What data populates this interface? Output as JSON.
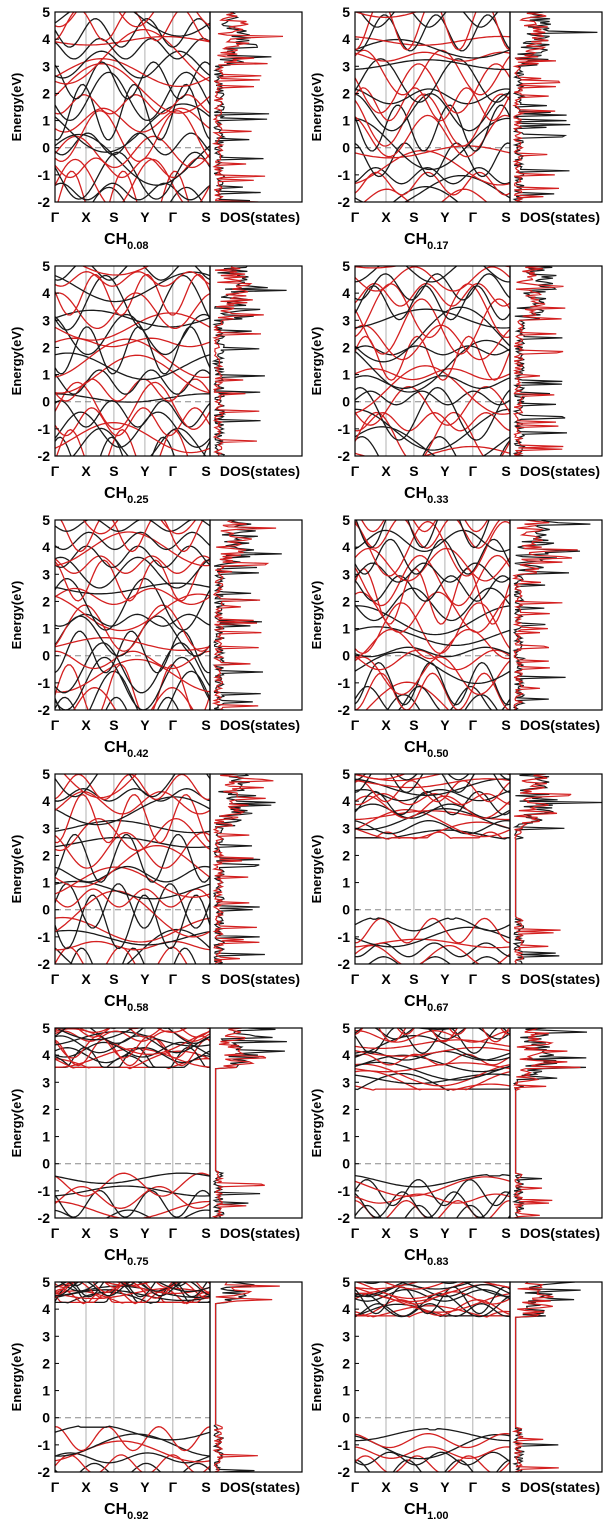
{
  "figure": {
    "y_axis_label": "Energy(eV)",
    "dos_label": "DOS(states)",
    "k_labels": [
      "Γ",
      "X",
      "S",
      "Y",
      "Γ",
      "S"
    ],
    "y_ticks": [
      "5",
      "4",
      "3",
      "2",
      "1",
      "0",
      "-1",
      "-2"
    ]
  },
  "colors": {
    "spin_up": "#1a1a1a",
    "spin_down": "#d42020",
    "fermi": "#888888",
    "kpath_line": "#b0b0b0"
  },
  "chart_data": [
    {
      "type": "line",
      "panel": "band structure + DOS",
      "title_base": "CH",
      "title_sub": "0.08",
      "ylim": [
        -2,
        5
      ],
      "fermi_level": 0,
      "k_path": [
        "Γ",
        "X",
        "S",
        "Y",
        "Γ",
        "S"
      ],
      "gap_region": null,
      "series": [
        {
          "name": "",
          "color": "black"
        },
        {
          "name": "",
          "color": "red"
        }
      ]
    },
    {
      "type": "line",
      "panel": "band structure + DOS",
      "title_base": "CH",
      "title_sub": "0.17",
      "ylim": [
        -2,
        5
      ],
      "fermi_level": 0,
      "k_path": [
        "Γ",
        "X",
        "S",
        "Y",
        "Γ",
        "S"
      ],
      "gap_region": null,
      "series": [
        {
          "name": "",
          "color": "black"
        },
        {
          "name": "",
          "color": "red"
        }
      ]
    },
    {
      "type": "line",
      "panel": "band structure + DOS",
      "title_base": "CH",
      "title_sub": "0.25",
      "ylim": [
        -2,
        5
      ],
      "fermi_level": 0,
      "k_path": [
        "Γ",
        "X",
        "S",
        "Y",
        "Γ",
        "S"
      ],
      "gap_region": null,
      "series": [
        {
          "name": "",
          "color": "black"
        },
        {
          "name": "",
          "color": "red"
        }
      ]
    },
    {
      "type": "line",
      "panel": "band structure + DOS",
      "title_base": "CH",
      "title_sub": "0.33",
      "ylim": [
        -2,
        5
      ],
      "fermi_level": 0,
      "k_path": [
        "Γ",
        "X",
        "S",
        "Y",
        "Γ",
        "S"
      ],
      "gap_region": null,
      "series": [
        {
          "name": "",
          "color": "black"
        },
        {
          "name": "",
          "color": "red"
        }
      ]
    },
    {
      "type": "line",
      "panel": "band structure + DOS",
      "title_base": "CH",
      "title_sub": "0.42",
      "ylim": [
        -2,
        5
      ],
      "fermi_level": 0,
      "k_path": [
        "Γ",
        "X",
        "S",
        "Y",
        "Γ",
        "S"
      ],
      "gap_region": null,
      "series": [
        {
          "name": "",
          "color": "black"
        },
        {
          "name": "",
          "color": "red"
        }
      ]
    },
    {
      "type": "line",
      "panel": "band structure + DOS",
      "title_base": "CH",
      "title_sub": "0.50",
      "ylim": [
        -2,
        5
      ],
      "fermi_level": 0,
      "k_path": [
        "Γ",
        "X",
        "S",
        "Y",
        "Γ",
        "S"
      ],
      "gap_region": null,
      "series": [
        {
          "name": "",
          "color": "black"
        },
        {
          "name": "",
          "color": "red"
        }
      ]
    },
    {
      "type": "line",
      "panel": "band structure + DOS",
      "title_base": "CH",
      "title_sub": "0.58",
      "ylim": [
        -2,
        5
      ],
      "fermi_level": 0,
      "k_path": [
        "Γ",
        "X",
        "S",
        "Y",
        "Γ",
        "S"
      ],
      "gap_region": null,
      "series": [
        {
          "name": "",
          "color": "black"
        },
        {
          "name": "",
          "color": "red"
        }
      ]
    },
    {
      "type": "line",
      "panel": "band structure + DOS",
      "title_base": "CH",
      "title_sub": "0.67",
      "ylim": [
        -2,
        5
      ],
      "fermi_level": 0,
      "k_path": [
        "Γ",
        "X",
        "S",
        "Y",
        "Γ",
        "S"
      ],
      "gap_region": [
        -0.3,
        2.6
      ],
      "series": [
        {
          "name": "",
          "color": "black"
        },
        {
          "name": "",
          "color": "red"
        }
      ]
    },
    {
      "type": "line",
      "panel": "band structure + DOS",
      "title_base": "CH",
      "title_sub": "0.75",
      "ylim": [
        -2,
        5
      ],
      "fermi_level": 0,
      "k_path": [
        "Γ",
        "X",
        "S",
        "Y",
        "Γ",
        "S"
      ],
      "gap_region": [
        -0.3,
        3.5
      ],
      "series": [
        {
          "name": "",
          "color": "black"
        },
        {
          "name": "",
          "color": "red"
        }
      ]
    },
    {
      "type": "line",
      "panel": "band structure + DOS",
      "title_base": "CH",
      "title_sub": "0.83",
      "ylim": [
        -2,
        5
      ],
      "fermi_level": 0,
      "k_path": [
        "Γ",
        "X",
        "S",
        "Y",
        "Γ",
        "S"
      ],
      "gap_region": [
        -0.4,
        2.7
      ],
      "series": [
        {
          "name": "",
          "color": "black"
        },
        {
          "name": "",
          "color": "red"
        }
      ]
    },
    {
      "type": "line",
      "panel": "band structure + DOS",
      "title_base": "CH",
      "title_sub": "0.92",
      "ylim": [
        -2,
        5
      ],
      "fermi_level": 0,
      "k_path": [
        "Γ",
        "X",
        "S",
        "Y",
        "Γ",
        "S"
      ],
      "gap_region": [
        -0.3,
        4.2
      ],
      "series": [
        {
          "name": "",
          "color": "black"
        },
        {
          "name": "",
          "color": "red"
        }
      ]
    },
    {
      "type": "line",
      "panel": "band structure + DOS",
      "title_base": "CH",
      "title_sub": "1.00",
      "ylim": [
        -2,
        5
      ],
      "fermi_level": 0,
      "k_path": [
        "Γ",
        "X",
        "S",
        "Y",
        "Γ",
        "S"
      ],
      "gap_region": [
        -0.4,
        3.7
      ],
      "series": [
        {
          "name": "",
          "color": "black"
        },
        {
          "name": "",
          "color": "red"
        }
      ]
    }
  ]
}
